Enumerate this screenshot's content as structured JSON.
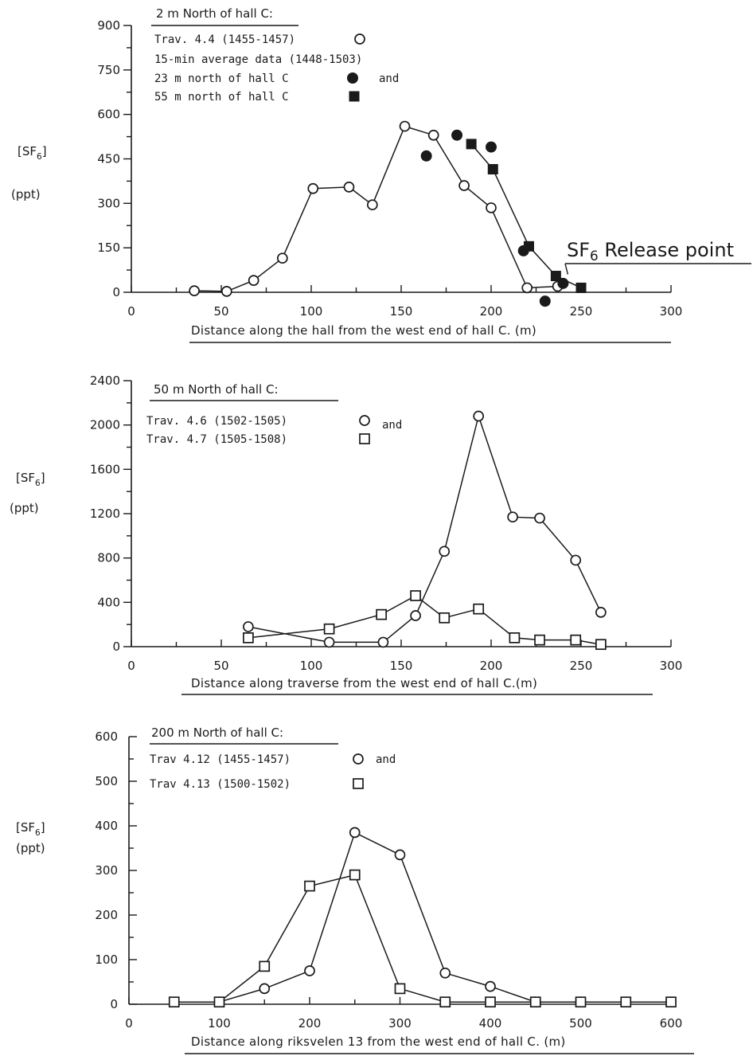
{
  "chart_data": [
    {
      "type": "scatter",
      "title": "2 m North of hall C:",
      "legend_lines": [
        "Trav. 4.4 (1455-1457)",
        "15-min average data (1448-1503)",
        "23 m north of hall C",
        "and",
        "55 m north of hall C"
      ],
      "ylabel": "[SF6]",
      "yunit": "(ppt)",
      "xlabel": "Distance along the hall from the west end of hall C. (m)",
      "xlim": [
        0,
        300
      ],
      "ylim": [
        0,
        900
      ],
      "xticks": [
        0,
        50,
        100,
        150,
        200,
        250,
        300
      ],
      "yticks": [
        0,
        150,
        300,
        450,
        600,
        750,
        900
      ],
      "annotation": {
        "text": "SF6 Release point",
        "x": 240,
        "y": 55
      },
      "series": [
        {
          "name": "Trav. 4.4 (1455-1457)",
          "marker": "open-circle",
          "connected": true,
          "x": [
            35,
            53,
            68,
            84,
            101,
            121,
            134,
            152,
            168,
            185,
            200,
            220,
            237
          ],
          "y": [
            5,
            3,
            40,
            115,
            350,
            355,
            295,
            560,
            530,
            360,
            285,
            15,
            20
          ]
        },
        {
          "name": "23 m north of hall C",
          "marker": "filled-circle",
          "connected": false,
          "x": [
            164,
            181,
            200,
            218,
            230,
            240
          ],
          "y": [
            460,
            530,
            490,
            140,
            -30,
            30
          ]
        },
        {
          "name": "55 m north of hall C",
          "marker": "filled-square",
          "connected": true,
          "x": [
            189,
            201,
            221,
            236,
            250
          ],
          "y": [
            500,
            415,
            155,
            55,
            15
          ]
        }
      ]
    },
    {
      "type": "line",
      "title": "50 m North of hall C:",
      "legend_lines": [
        "Trav. 4.6 (1502-1505)",
        "and",
        "Trav. 4.7 (1505-1508)"
      ],
      "ylabel": "[SF6]",
      "yunit": "(ppt)",
      "xlabel": "Distance along traverse from the west end of hall C.(m)",
      "xlim": [
        0,
        300
      ],
      "ylim": [
        0,
        2400
      ],
      "xticks": [
        0,
        50,
        100,
        150,
        200,
        250,
        300
      ],
      "yticks": [
        0,
        400,
        800,
        1200,
        1600,
        2000,
        2400
      ],
      "series": [
        {
          "name": "Trav. 4.6 (1502-1505)",
          "marker": "open-circle",
          "x": [
            65,
            110,
            140,
            158,
            174,
            193,
            212,
            227,
            247,
            261
          ],
          "y": [
            180,
            40,
            40,
            280,
            860,
            2080,
            1170,
            1160,
            780,
            310
          ]
        },
        {
          "name": "Trav. 4.7 (1505-1508)",
          "marker": "open-square",
          "x": [
            65,
            110,
            139,
            158,
            174,
            193,
            213,
            227,
            247,
            261
          ],
          "y": [
            80,
            160,
            290,
            460,
            260,
            340,
            80,
            60,
            60,
            20
          ]
        }
      ]
    },
    {
      "type": "line",
      "title": "200 m North of hall C:",
      "legend_lines": [
        "Trav 4.12 (1455-1457)",
        "and",
        "Trav 4.13 (1500-1502)"
      ],
      "ylabel": "[SF6]",
      "yunit": "(ppt)",
      "xlabel": "Distance along riksvelen 13 from the west end of hall C. (m)",
      "xlim": [
        0,
        600
      ],
      "ylim": [
        0,
        600
      ],
      "xticks": [
        0,
        100,
        200,
        300,
        400,
        500,
        600
      ],
      "yticks": [
        0,
        100,
        200,
        300,
        400,
        500,
        600
      ],
      "series": [
        {
          "name": "Trav 4.12 (1455-1457)",
          "marker": "open-circle",
          "x": [
            100,
            150,
            200,
            250,
            300,
            350,
            400,
            450,
            500,
            550,
            600
          ],
          "y": [
            5,
            35,
            75,
            385,
            335,
            70,
            40,
            5,
            5,
            5,
            5
          ]
        },
        {
          "name": "Trav 4.13 (1500-1502)",
          "marker": "open-square",
          "x": [
            50,
            100,
            150,
            200,
            250,
            300,
            350,
            400,
            450,
            500,
            550,
            600
          ],
          "y": [
            5,
            5,
            85,
            265,
            290,
            35,
            5,
            5,
            5,
            5,
            5,
            5
          ]
        }
      ]
    }
  ]
}
